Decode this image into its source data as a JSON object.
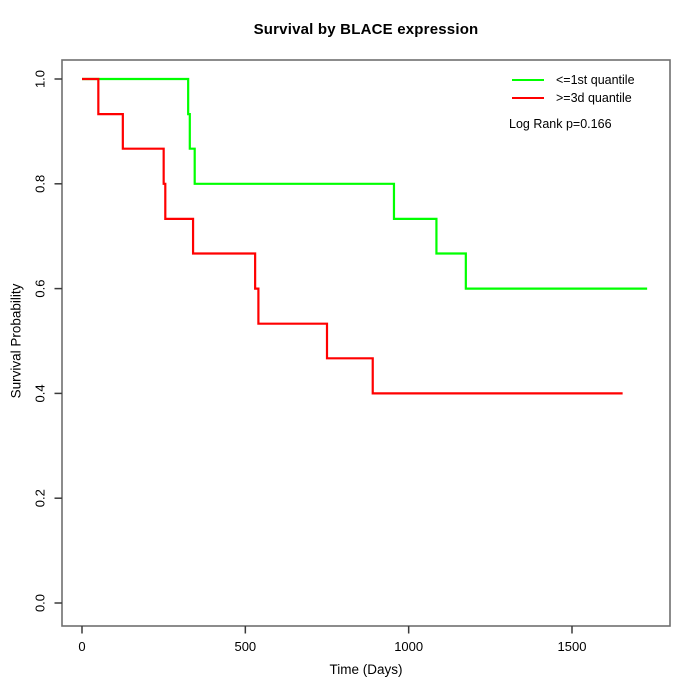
{
  "title": "Survival by BLACE expression",
  "chart_data": {
    "type": "line",
    "subtype": "kaplan-meier-step",
    "title": "Survival by BLACE expression",
    "xlabel": "Time (Days)",
    "ylabel": "Survival Probability",
    "xlim": [
      0,
      1800
    ],
    "ylim": [
      0.0,
      1.0
    ],
    "x_ticks": [
      0,
      500,
      1000,
      1500
    ],
    "y_ticks": [
      "0.0",
      "0.2",
      "0.4",
      "0.6",
      "0.8",
      "1.0"
    ],
    "grid": false,
    "legend_position": "top-right",
    "annotation": "Log Rank p=0.166",
    "series": [
      {
        "name": "<=1st quantile",
        "color": "#00ff00",
        "end_t": 1730,
        "steps": [
          [
            0,
            1.0
          ],
          [
            325,
            0.933
          ],
          [
            330,
            0.867
          ],
          [
            345,
            0.8
          ],
          [
            955,
            0.733
          ],
          [
            1085,
            0.667
          ],
          [
            1175,
            0.6
          ]
        ]
      },
      {
        "name": ">=3d quantile",
        "color": "#ff0000",
        "end_t": 1655,
        "steps": [
          [
            0,
            1.0
          ],
          [
            50,
            0.933
          ],
          [
            125,
            0.867
          ],
          [
            250,
            0.8
          ],
          [
            255,
            0.733
          ],
          [
            340,
            0.667
          ],
          [
            530,
            0.6
          ],
          [
            540,
            0.533
          ],
          [
            750,
            0.467
          ],
          [
            890,
            0.4
          ]
        ]
      }
    ]
  },
  "colors": {
    "axis_box": "#6f6f6f",
    "tick": "#3a3a3a",
    "text": "#000000",
    "background": "#ffffff",
    "series_green": "#00ff00",
    "series_red": "#ff0000"
  }
}
